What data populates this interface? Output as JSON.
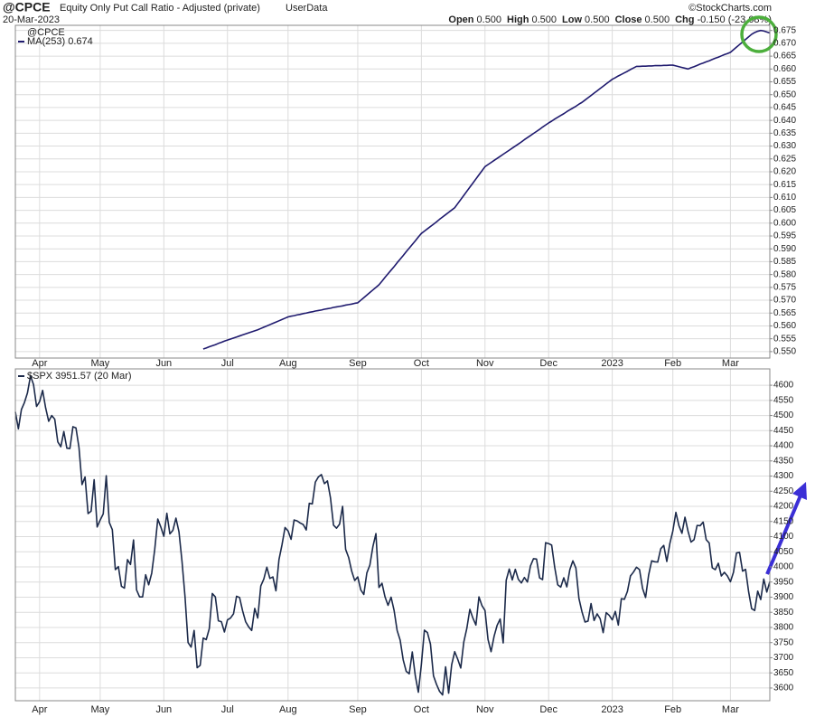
{
  "chart_data": [
    {
      "type": "line",
      "title": "@CPCE",
      "subtitle": "Equity Only Put Call Ratio - Adjusted (private)",
      "source": "UserData",
      "date": "20-Mar-2023",
      "credit": "©StockCharts.com",
      "quote": [
        [
          "Open",
          "0.500"
        ],
        [
          "High",
          "0.500"
        ],
        [
          "Low",
          "0.500"
        ],
        [
          "Close",
          "0.500"
        ],
        [
          "Chg",
          "-0.150 (-23.08%)"
        ]
      ],
      "legend_title": "@CPCE",
      "xlim": [
        0,
        249
      ],
      "xticks": [
        {
          "value": 8,
          "label": "Apr"
        },
        {
          "value": 28,
          "label": "May"
        },
        {
          "value": 49,
          "label": "Jun"
        },
        {
          "value": 70,
          "label": "Jul"
        },
        {
          "value": 90,
          "label": "Aug"
        },
        {
          "value": 113,
          "label": "Sep"
        },
        {
          "value": 134,
          "label": "Oct"
        },
        {
          "value": 155,
          "label": "Nov"
        },
        {
          "value": 176,
          "label": "Dec"
        },
        {
          "value": 197,
          "label": "2023"
        },
        {
          "value": 217,
          "label": "Feb"
        },
        {
          "value": 236,
          "label": "Mar"
        }
      ],
      "ylim": [
        0.5475,
        0.677
      ],
      "yticks": [
        {
          "value": 0.55,
          "label": "0.550"
        },
        {
          "value": 0.555,
          "label": "0.555"
        },
        {
          "value": 0.56,
          "label": "0.560"
        },
        {
          "value": 0.565,
          "label": "0.565"
        },
        {
          "value": 0.57,
          "label": "0.570"
        },
        {
          "value": 0.575,
          "label": "0.575"
        },
        {
          "value": 0.58,
          "label": "0.580"
        },
        {
          "value": 0.585,
          "label": "0.585"
        },
        {
          "value": 0.59,
          "label": "0.590"
        },
        {
          "value": 0.595,
          "label": "0.595"
        },
        {
          "value": 0.6,
          "label": "0.600"
        },
        {
          "value": 0.605,
          "label": "0.605"
        },
        {
          "value": 0.61,
          "label": "0.610"
        },
        {
          "value": 0.615,
          "label": "0.615"
        },
        {
          "value": 0.62,
          "label": "0.620"
        },
        {
          "value": 0.625,
          "label": "0.625"
        },
        {
          "value": 0.63,
          "label": "0.630"
        },
        {
          "value": 0.635,
          "label": "0.635"
        },
        {
          "value": 0.64,
          "label": "0.640"
        },
        {
          "value": 0.645,
          "label": "0.645"
        },
        {
          "value": 0.65,
          "label": "0.650"
        },
        {
          "value": 0.655,
          "label": "0.655"
        },
        {
          "value": 0.66,
          "label": "0.660"
        },
        {
          "value": 0.665,
          "label": "0.665"
        },
        {
          "value": 0.67,
          "label": "0.670"
        },
        {
          "value": 0.675,
          "label": "0.675"
        }
      ],
      "grid": true,
      "series": [
        {
          "name": "MA(253) 0.674",
          "color": "#1f1a6e",
          "values": [
            null,
            null,
            null,
            null,
            null,
            null,
            null,
            null,
            null,
            null,
            null,
            null,
            null,
            null,
            null,
            null,
            null,
            null,
            null,
            null,
            null,
            null,
            null,
            null,
            null,
            null,
            null,
            null,
            null,
            null,
            null,
            null,
            null,
            null,
            null,
            null,
            null,
            null,
            null,
            null,
            null,
            null,
            null,
            null,
            null,
            null,
            null,
            null,
            null,
            null,
            null,
            null,
            null,
            null,
            null,
            null,
            null,
            null,
            null,
            null,
            null,
            null,
            0.551,
            0.5514,
            0.5519,
            0.5523,
            0.5527,
            0.5532,
            0.5536,
            0.5541,
            0.5545,
            0.5549,
            0.5553,
            0.5557,
            0.5561,
            0.5565,
            0.5569,
            0.5573,
            0.5577,
            0.5581,
            0.5585,
            0.559,
            0.5595,
            0.56,
            0.5605,
            0.561,
            0.5615,
            0.562,
            0.5625,
            0.563,
            0.5635,
            0.5638,
            0.564,
            0.5643,
            0.5645,
            0.5648,
            0.565,
            0.5653,
            0.5655,
            0.5658,
            0.566,
            0.5662,
            0.5665,
            0.5667,
            0.5669,
            0.5672,
            0.5674,
            0.5676,
            0.5678,
            0.5681,
            0.5683,
            0.5685,
            0.5688,
            0.569,
            0.57,
            0.571,
            0.572,
            0.573,
            0.574,
            0.575,
            0.576,
            0.5774,
            0.5789,
            0.5803,
            0.5817,
            0.5831,
            0.5846,
            0.586,
            0.5874,
            0.5889,
            0.5903,
            0.5917,
            0.5931,
            0.5946,
            0.596,
            0.5969,
            0.5978,
            0.5987,
            0.5996,
            0.6005,
            0.6015,
            0.6024,
            0.6033,
            0.6042,
            0.6051,
            0.606,
            0.6076,
            0.6092,
            0.6108,
            0.6124,
            0.614,
            0.6156,
            0.6172,
            0.6188,
            0.6204,
            0.622,
            0.6228,
            0.6236,
            0.6244,
            0.6252,
            0.626,
            0.6268,
            0.6276,
            0.6284,
            0.6292,
            0.63,
            0.6308,
            0.6316,
            0.6325,
            0.6333,
            0.6341,
            0.6349,
            0.6357,
            0.6365,
            0.6374,
            0.6382,
            0.639,
            0.6397,
            0.6405,
            0.6412,
            0.6419,
            0.6426,
            0.6434,
            0.6441,
            0.6448,
            0.6455,
            0.6463,
            0.647,
            0.6479,
            0.6488,
            0.6497,
            0.6506,
            0.6515,
            0.6524,
            0.6533,
            0.6542,
            0.6551,
            0.656,
            0.6566,
            0.6573,
            0.6579,
            0.6585,
            0.6591,
            0.6598,
            0.6604,
            0.661,
            0.661,
            0.6611,
            0.6611,
            0.6612,
            0.6612,
            0.6613,
            0.6613,
            0.6613,
            0.6614,
            0.6614,
            0.6615,
            0.6615,
            0.6612,
            0.6609,
            0.6606,
            0.6603,
            0.66,
            0.6605,
            0.6609,
            0.6614,
            0.6619,
            0.6623,
            0.6628,
            0.6632,
            0.6637,
            0.6642,
            0.6646,
            0.6651,
            0.6656,
            0.666,
            0.6665,
            0.6675,
            0.6685,
            0.6695,
            0.6705,
            0.6715,
            0.6725,
            0.6735,
            0.6742,
            0.6747,
            0.675,
            0.6748,
            0.6744,
            0.674
          ]
        }
      ]
    },
    {
      "type": "line",
      "xlim": [
        0,
        249
      ],
      "xticks": [
        {
          "value": 8,
          "label": "Apr"
        },
        {
          "value": 28,
          "label": "May"
        },
        {
          "value": 49,
          "label": "Jun"
        },
        {
          "value": 70,
          "label": "Jul"
        },
        {
          "value": 90,
          "label": "Aug"
        },
        {
          "value": 113,
          "label": "Sep"
        },
        {
          "value": 134,
          "label": "Oct"
        },
        {
          "value": 155,
          "label": "Nov"
        },
        {
          "value": 176,
          "label": "Dec"
        },
        {
          "value": 197,
          "label": "2023"
        },
        {
          "value": 217,
          "label": "Feb"
        },
        {
          "value": 236,
          "label": "Mar"
        }
      ],
      "ylim": [
        3558,
        4654
      ],
      "yticks": [
        3600,
        3650,
        3700,
        3750,
        3800,
        3850,
        3900,
        3950,
        4000,
        4050,
        4100,
        4150,
        4200,
        4250,
        4300,
        4350,
        4400,
        4450,
        4500,
        4550,
        4600
      ],
      "grid": true,
      "series": [
        {
          "name": "$SPX 3951.57 (20 Mar)",
          "color": "#1c2a4a",
          "values": [
            4512,
            4456,
            4520,
            4543,
            4575,
            4631,
            4602,
            4530,
            4546,
            4583,
            4525,
            4481,
            4500,
            4488,
            4413,
            4397,
            4447,
            4392,
            4391,
            4463,
            4459,
            4394,
            4272,
            4297,
            4176,
            4184,
            4288,
            4132,
            4155,
            4175,
            4301,
            4147,
            4123,
            3991,
            4001,
            3936,
            3930,
            4024,
            4008,
            4089,
            3924,
            3901,
            3901,
            3974,
            3941,
            3979,
            4058,
            4158,
            4132,
            4101,
            4177,
            4109,
            4121,
            4161,
            4116,
            4018,
            3901,
            3750,
            3735,
            3790,
            3667,
            3675,
            3765,
            3760,
            3796,
            3912,
            3901,
            3822,
            3819,
            3785,
            3825,
            3831,
            3845,
            3903,
            3899,
            3855,
            3819,
            3802,
            3790,
            3863,
            3831,
            3937,
            3960,
            3999,
            3962,
            3967,
            3921,
            4024,
            4073,
            4130,
            4119,
            4091,
            4155,
            4152,
            4145,
            4140,
            4122,
            4210,
            4208,
            4280,
            4297,
            4305,
            4275,
            4284,
            4228,
            4138,
            4128,
            4141,
            4200,
            4058,
            4031,
            3986,
            3955,
            3967,
            3924,
            3909,
            3980,
            4006,
            4067,
            4110,
            3932,
            3946,
            3901,
            3873,
            3900,
            3856,
            3790,
            3758,
            3693,
            3655,
            3647,
            3719,
            3640,
            3586,
            3678,
            3791,
            3783,
            3745,
            3640,
            3612,
            3589,
            3577,
            3670,
            3583,
            3677,
            3720,
            3695,
            3666,
            3752,
            3797,
            3860,
            3831,
            3808,
            3901,
            3872,
            3856,
            3760,
            3720,
            3771,
            3807,
            3828,
            3749,
            3956,
            3993,
            3957,
            3992,
            3959,
            3947,
            3965,
            3950,
            4003,
            4027,
            4026,
            3964,
            3958,
            4080,
            4077,
            4072,
            3999,
            3941,
            3933,
            3964,
            3934,
            3991,
            4020,
            3996,
            3896,
            3852,
            3818,
            3821,
            3879,
            3823,
            3845,
            3829,
            3783,
            3849,
            3840,
            3825,
            3853,
            3808,
            3895,
            3893,
            3919,
            3970,
            3983,
            3999,
            3991,
            3929,
            3899,
            3973,
            4020,
            4017,
            4016,
            4060,
            4071,
            4018,
            4077,
            4119,
            4180,
            4136,
            4111,
            4164,
            4118,
            4082,
            4090,
            4137,
            4136,
            4148,
            4090,
            4079,
            3997,
            3991,
            4012,
            3970,
            3982,
            3970,
            3951,
            3982,
            4046,
            4048,
            3986,
            3992,
            3918,
            3862,
            3856,
            3920,
            3892,
            3960,
            3917,
            3951
          ]
        }
      ]
    }
  ]
}
